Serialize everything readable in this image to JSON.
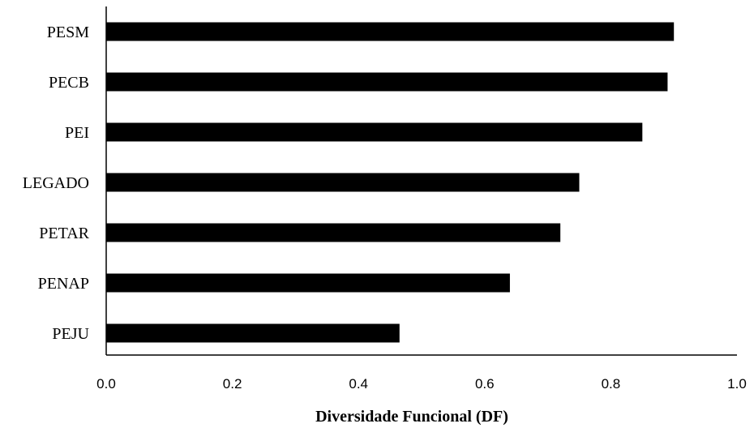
{
  "chart_data": {
    "type": "bar",
    "orientation": "horizontal",
    "categories": [
      "PESM",
      "PECB",
      "PEI",
      "LEGADO",
      "PETAR",
      "PENAP",
      "PEJU"
    ],
    "values": [
      0.9,
      0.89,
      0.85,
      0.75,
      0.72,
      0.64,
      0.465
    ],
    "xlabel": "Diversidade Funcional (DF)",
    "ylabel": "",
    "xlim": [
      0.0,
      1.0
    ],
    "xticks": [
      "0.0",
      "0.2",
      "0.4",
      "0.6",
      "0.8",
      "1.0"
    ],
    "grid": false,
    "legend": "none",
    "bar_color": "#000000"
  }
}
